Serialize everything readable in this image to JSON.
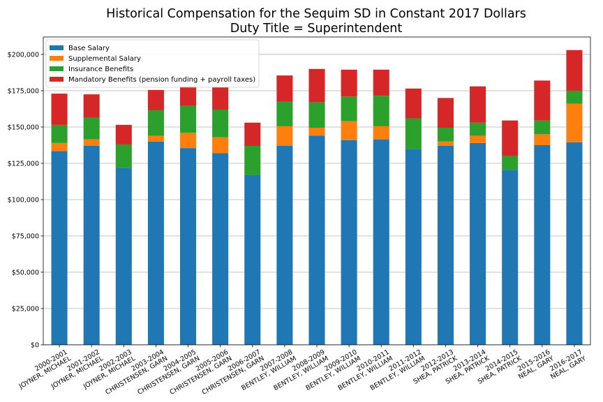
{
  "chart_data": {
    "type": "bar",
    "stacked": true,
    "title": "Historical Compensation for the Sequim SD in Constant 2017 Dollars",
    "subtitle": "Duty Title = Superintendent",
    "xlabel": "",
    "ylabel": "",
    "ylim": [
      0,
      212000
    ],
    "y_ticks": [
      0,
      25000,
      50000,
      75000,
      100000,
      125000,
      150000,
      175000,
      200000
    ],
    "y_tick_labels": [
      "$0",
      "$25,000",
      "$50,000",
      "$75,000",
      "$100,000",
      "$125,000",
      "$150,000",
      "$175,000",
      "$200,000"
    ],
    "grid": "horizontal",
    "legend_position": "top-left",
    "categories": [
      [
        "2000-2001",
        "JOYNER, MICHAEL"
      ],
      [
        "2001-2002",
        "JOYNER, MICHAEL"
      ],
      [
        "2002-2003",
        "JOYNER, MICHAEL"
      ],
      [
        "2003-2004",
        "CHRISTENSEN, GARN"
      ],
      [
        "2004-2005",
        "CHRISTENSEN, GARN"
      ],
      [
        "2005-2006",
        "CHRISTENSEN, GARN"
      ],
      [
        "2006-2007",
        "CHRISTENSEN, GARN"
      ],
      [
        "2007-2008",
        "BENTLEY, WILLIAM"
      ],
      [
        "2008-2009",
        "BENTLEY, WILLIAM"
      ],
      [
        "2009-2010",
        "BENTLEY, WILLIAM"
      ],
      [
        "2010-2011",
        "BENTLEY, WILLIAM"
      ],
      [
        "2011-2012",
        "BENTLEY, WILLIAM"
      ],
      [
        "2012-2013",
        "SHEA, PATRICK"
      ],
      [
        "2013-2014",
        "SHEA, PATRICK"
      ],
      [
        "2014-2015",
        "SHEA, PATRICK"
      ],
      [
        "2015-2016",
        "NEAL, GARY"
      ],
      [
        "2016-2017",
        "NEAL, GARY"
      ]
    ],
    "series": [
      {
        "name": "Base Salary",
        "color": "#1f77b4",
        "values": [
          133500,
          137000,
          122000,
          140000,
          135500,
          132000,
          117000,
          137000,
          144000,
          141000,
          141500,
          135000,
          137000,
          139000,
          120500,
          137500,
          139500
        ]
      },
      {
        "name": "Supplemental Salary",
        "color": "#ff7f0e",
        "values": [
          5500,
          4500,
          0,
          4000,
          10500,
          11000,
          0,
          13500,
          5500,
          13000,
          9000,
          0,
          3000,
          5000,
          0,
          7500,
          26500
        ]
      },
      {
        "name": "Insurance Benefits",
        "color": "#2ca02c",
        "values": [
          12500,
          15000,
          16000,
          17500,
          18500,
          19000,
          20000,
          17000,
          17500,
          17000,
          21000,
          21000,
          9500,
          9000,
          9500,
          9500,
          9000
        ]
      },
      {
        "name": "Mandatory Benefits (pension funding + payroll taxes)",
        "color": "#d62728",
        "values": [
          21500,
          16000,
          13500,
          14000,
          13500,
          15500,
          16000,
          18000,
          23000,
          18500,
          18000,
          20500,
          20500,
          25000,
          24500,
          27500,
          28000
        ]
      }
    ]
  }
}
